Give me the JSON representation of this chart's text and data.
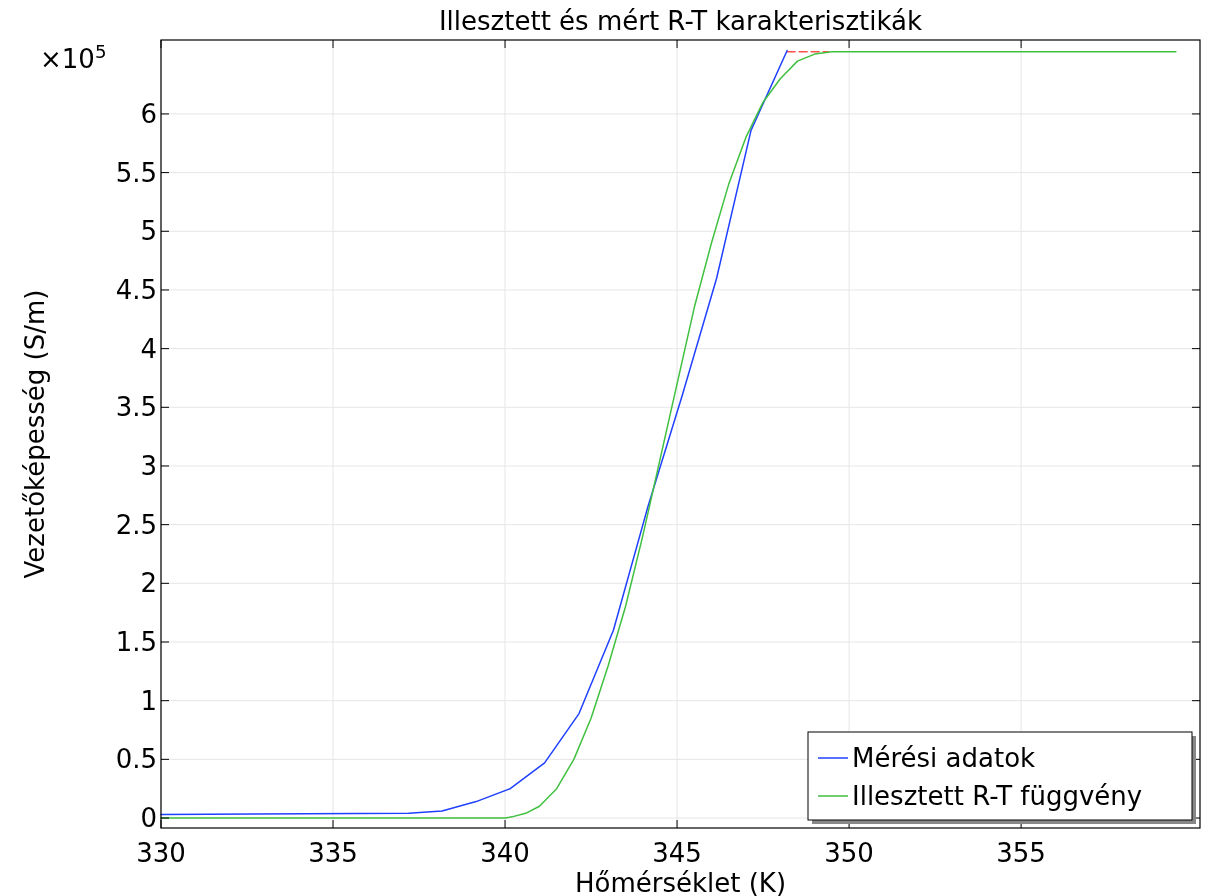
{
  "chart_data": {
    "type": "line",
    "title": "Illesztett és mért R-T karakterisztikák",
    "xlabel": "Hőmérséklet (K)",
    "ylabel": "Vezetőképesség (S/m)",
    "annotations": [
      "×10$^{5}$"
    ],
    "xlim": [
      330,
      360.2
    ],
    "ylim": [
      -0.085,
      6.63
    ],
    "xticks": [
      330,
      335,
      340,
      345,
      350,
      355
    ],
    "yticks": [
      0,
      0.5,
      1,
      1.5,
      2,
      2.5,
      3,
      3.5,
      4,
      4.5,
      5,
      5.5,
      6
    ],
    "grid": true,
    "legend": "bottom right",
    "line_style": "solid",
    "series": [
      {
        "color": "#ff5050",
        "line_style": "dashed",
        "x": [
          348.2,
          349.4
        ],
        "values": [
          6.53,
          6.53
        ]
      },
      {
        "name": "Mérési adatok",
        "color": "#2040ff",
        "x": [
          330,
          337.2,
          338.17,
          339.16,
          340.15,
          341.15,
          342.15,
          343.15,
          344.15,
          345.15,
          346.15,
          347.15,
          348.2
        ],
        "values": [
          0.03,
          0.04,
          0.06,
          0.14,
          0.25,
          0.47,
          0.89,
          1.6,
          2.65,
          3.6,
          4.6,
          5.86,
          6.54
        ]
      },
      {
        "name": "Illesztett R-T függvény",
        "color": "#40c040",
        "x": [
          330,
          340,
          340.2,
          340.6,
          341,
          341.5,
          342,
          342.5,
          343,
          343.5,
          344,
          344.5,
          345,
          345.5,
          346,
          346.5,
          347,
          347.5,
          348,
          348.5,
          349,
          349.5,
          350,
          359.5
        ],
        "values": [
          0,
          0,
          0.01,
          0.04,
          0.1,
          0.25,
          0.5,
          0.85,
          1.3,
          1.8,
          2.4,
          3.05,
          3.7,
          4.35,
          4.9,
          5.4,
          5.8,
          6.1,
          6.3,
          6.45,
          6.51,
          6.53,
          6.53,
          6.53
        ]
      }
    ]
  }
}
